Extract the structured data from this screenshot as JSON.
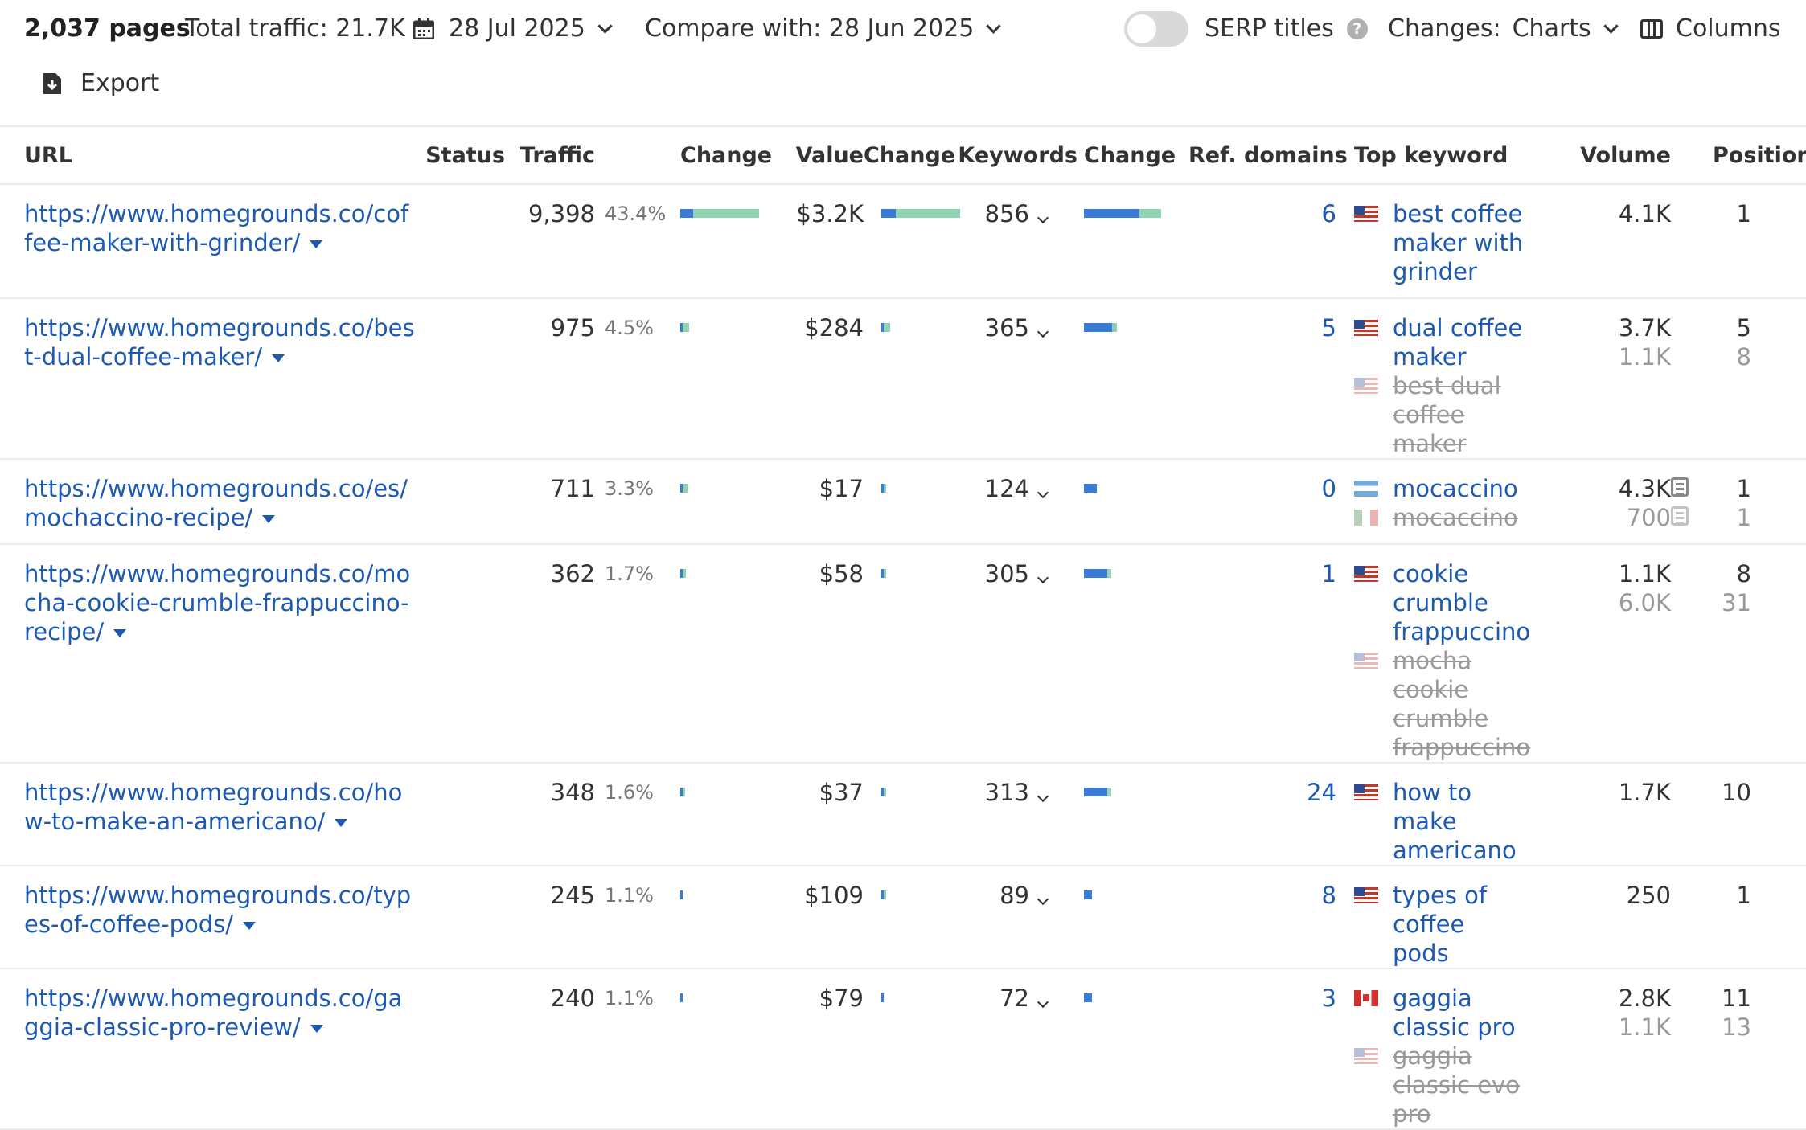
{
  "toolbar": {
    "pages": "2,037 pages",
    "traffic": "Total traffic: 21.7K",
    "date": "28 Jul 2025",
    "compare": "Compare with: 28 Jun 2025",
    "serp_label": "SERP titles",
    "help": "?",
    "changes_label": "Changes:",
    "changes_value": "Charts",
    "columns": "Columns",
    "export": "Export"
  },
  "headers": {
    "url": "URL",
    "status": "Status",
    "traffic": "Traffic",
    "change1": "Change",
    "value": "Value",
    "change2": "Change",
    "keywords": "Keywords",
    "change3": "Change",
    "ref": "Ref. domains",
    "topkw": "Top keyword",
    "volume": "Volume",
    "position": "Position"
  },
  "colors": {
    "link": "#1b59b3",
    "bar_blue": "#3a7bd5",
    "bar_green": "#8fd3b3",
    "bar_teal": "#5bbfa5"
  },
  "rows": [
    {
      "url": "https://www.homegrounds.co/coffee-maker-with-grinder/",
      "traffic": "9,398",
      "pct": "43.4%",
      "tc": [
        0.16,
        0.84
      ],
      "value": "$3.2K",
      "vc": [
        0.18,
        0.82
      ],
      "keywords": "856",
      "kc": [
        0.7,
        0.28
      ],
      "ref": "6",
      "kw1": {
        "flag": "us",
        "text": "best coffee maker with grinder"
      },
      "kw2": null,
      "vol1": "4.1K",
      "vol2": "",
      "pos1": "1",
      "pos2": "",
      "serp": false
    },
    {
      "url": "https://www.homegrounds.co/best-dual-coffee-maker/",
      "traffic": "975",
      "pct": "4.5%",
      "tc": [
        0.02,
        0.08
      ],
      "value": "$284",
      "vc": [
        0.03,
        0.08
      ],
      "keywords": "365",
      "kc": [
        0.36,
        0.06
      ],
      "ref": "5",
      "kw1": {
        "flag": "us",
        "text": "dual coffee maker"
      },
      "kw2": {
        "flag": "us",
        "text": "best dual coffee maker"
      },
      "vol1": "3.7K",
      "vol2": "1.1K",
      "pos1": "5",
      "pos2": "8",
      "serp": false
    },
    {
      "url": "https://www.homegrounds.co/es/mochaccino-recipe/",
      "traffic": "711",
      "pct": "3.3%",
      "tc": [
        0.02,
        0.06
      ],
      "value": "$17",
      "vc": [
        0.01,
        0.02
      ],
      "keywords": "124",
      "kc": [
        0.16,
        0.0
      ],
      "ref": "0",
      "kw1": {
        "flag": "ar",
        "text": "mocaccino"
      },
      "kw2": {
        "flag": "mx",
        "text": "mocaccino"
      },
      "vol1": "4.3K",
      "vol2": "700",
      "pos1": "1",
      "pos2": "1",
      "serp": true
    },
    {
      "url": "https://www.homegrounds.co/mocha-cookie-crumble-frappuccino-recipe/",
      "traffic": "362",
      "pct": "1.7%",
      "tc": [
        0.02,
        0.04
      ],
      "value": "$58",
      "vc": [
        0.02,
        0.02
      ],
      "keywords": "305",
      "kc": [
        0.3,
        0.05
      ],
      "ref": "1",
      "kw1": {
        "flag": "us",
        "text": "cookie crumble frappuccino"
      },
      "kw2": {
        "flag": "us",
        "text": "mocha cookie crumble frappuccino"
      },
      "vol1": "1.1K",
      "vol2": "6.0K",
      "pos1": "8",
      "pos2": "31",
      "serp": false
    },
    {
      "url": "https://www.homegrounds.co/how-to-make-an-americano/",
      "traffic": "348",
      "pct": "1.6%",
      "tc": [
        0.02,
        0.02
      ],
      "value": "$37",
      "vc": [
        0.02,
        0.02
      ],
      "keywords": "313",
      "kc": [
        0.3,
        0.05
      ],
      "ref": "24",
      "kw1": {
        "flag": "us",
        "text": "how to make americano"
      },
      "kw2": null,
      "vol1": "1.7K",
      "vol2": "",
      "pos1": "10",
      "pos2": "",
      "serp": false
    },
    {
      "url": "https://www.homegrounds.co/types-of-coffee-pods/",
      "traffic": "245",
      "pct": "1.1%",
      "tc": [
        0.03,
        0.0
      ],
      "value": "$109",
      "vc": [
        0.03,
        0.02
      ],
      "keywords": "89",
      "kc": [
        0.1,
        0.0
      ],
      "ref": "8",
      "kw1": {
        "flag": "us",
        "text": "types of coffee pods"
      },
      "kw2": null,
      "vol1": "250",
      "vol2": "",
      "pos1": "1",
      "pos2": "",
      "serp": false
    },
    {
      "url": "https://www.homegrounds.co/gaggia-classic-pro-review/",
      "traffic": "240",
      "pct": "1.1%",
      "tc": [
        0.02,
        0.0
      ],
      "value": "$79",
      "vc": [
        0.02,
        0.0
      ],
      "keywords": "72",
      "kc": [
        0.1,
        0.0
      ],
      "ref": "3",
      "kw1": {
        "flag": "ca",
        "text": "gaggia classic pro"
      },
      "kw2": {
        "flag": "us",
        "text": "gaggia classic evo pro"
      },
      "vol1": "2.8K",
      "vol2": "1.1K",
      "pos1": "11",
      "pos2": "13",
      "serp": false
    }
  ]
}
